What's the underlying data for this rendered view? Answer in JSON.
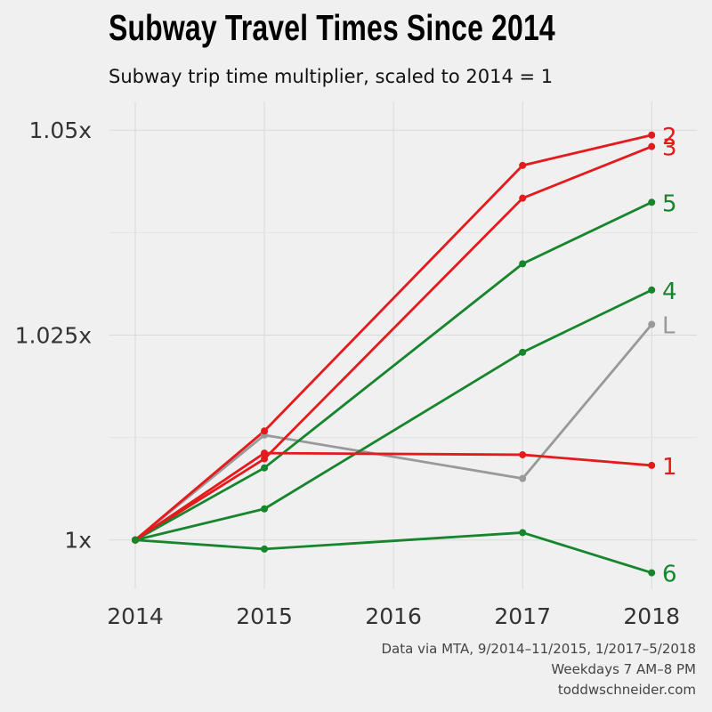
{
  "chart_data": {
    "type": "line",
    "title": "Subway Travel Times Since 2014",
    "subtitle": "Subway trip time multiplier, scaled to 2014 = 1",
    "xlabel": "",
    "ylabel": "",
    "x": [
      2014,
      2015,
      2017,
      2018
    ],
    "xticks": [
      "2014",
      "2015",
      "2016",
      "2017",
      "2018"
    ],
    "xlim": [
      2013.8,
      2018.35
    ],
    "ylim": [
      0.994,
      1.0535
    ],
    "yticks": [
      {
        "value": 1.0,
        "label": "1x"
      },
      {
        "value": 1.025,
        "label": "1.025x"
      },
      {
        "value": 1.05,
        "label": "1.05x"
      }
    ],
    "grid": true,
    "legend": "direct labels at line ends",
    "series": [
      {
        "name": "2",
        "color": "#e41a1c",
        "values": [
          1.0,
          1.0133,
          1.0457,
          1.0494
        ]
      },
      {
        "name": "3",
        "color": "#e41a1c",
        "values": [
          1.0,
          1.0099,
          1.0417,
          1.048
        ]
      },
      {
        "name": "5",
        "color": "#16852b",
        "values": [
          1.0,
          1.0088,
          1.0337,
          1.0412
        ]
      },
      {
        "name": "4",
        "color": "#16852b",
        "values": [
          1.0,
          1.0038,
          1.0229,
          1.0305
        ]
      },
      {
        "name": "L",
        "color": "#999999",
        "values": [
          1.0,
          1.0128,
          1.0075,
          1.0263
        ]
      },
      {
        "name": "1",
        "color": "#e41a1c",
        "values": [
          1.0,
          1.0106,
          1.0104,
          1.0091
        ]
      },
      {
        "name": "6",
        "color": "#16852b",
        "values": [
          1.0,
          0.9989,
          1.0009,
          0.996
        ]
      }
    ]
  },
  "captions": [
    "Data via MTA, 9/2014–11/2015, 1/2017–5/2018",
    "Weekdays 7 AM–8 PM",
    "toddwschneider.com"
  ]
}
